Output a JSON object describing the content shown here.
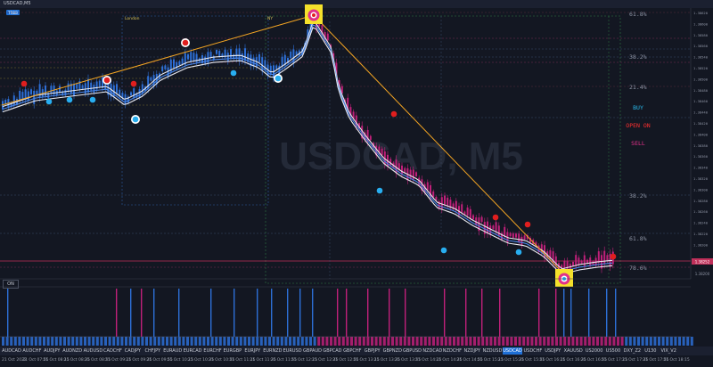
{
  "window": {
    "title": "USDCAD,M5",
    "badge": "TRBB"
  },
  "watermark": "USDCAD, M5",
  "session_labels": {
    "london": "London",
    "ny": "NY"
  },
  "fib_labels_top": [
    "61.8%",
    "38.2%",
    "21.4%"
  ],
  "fib_labels_bottom": [
    "38.2%",
    "61.8%",
    "78.6%"
  ],
  "signals": {
    "buy": "BUY",
    "open": "OPEN ON",
    "sell": "SELL"
  },
  "price_ticks": [
    "1.38620",
    "1.38600",
    "1.38580",
    "1.38560",
    "1.38540",
    "1.38520",
    "1.38500",
    "1.38480",
    "1.38460",
    "1.38440",
    "1.38420",
    "1.38400",
    "1.38380",
    "1.38360",
    "1.38340",
    "1.38320",
    "1.38300",
    "1.38280",
    "1.38260",
    "1.38240",
    "1.38220",
    "1.38200"
  ],
  "current_price": "1.38252",
  "bottom_price": "1.38200",
  "indicator_toggle": "ON",
  "tabs": [
    "AUDCAD",
    "AUDCHF",
    "AUDJPY",
    "AUDNZD",
    "AUDUSD",
    "CADCHF",
    "CADJPY",
    "CHFJPY",
    "EURAUD",
    "EURCAD",
    "EURCHF",
    "EURGBP",
    "EURJPY",
    "EURNZD",
    "EURUSD",
    "GBPAUD",
    "GBPCAD",
    "GBPCHF",
    "GBPJPY",
    "GBPNZD",
    "GBPUSD",
    "NZDCAD",
    "NZDCHF",
    "NZDJPY",
    "NZDUSD",
    "USDCAD",
    "USDCHF",
    "USDJPY",
    "XAUUSD",
    "US2000",
    "US500",
    "DXY_Z2",
    "U130",
    "VIX_V2"
  ],
  "active_tab": "USDCAD",
  "time_labels": [
    "21 Oct 2022",
    "21 Oct 07:55",
    "21 Oct 08:15",
    "21 Oct 08:35",
    "21 Oct 08:55",
    "21 Oct 09:15",
    "21 Oct 09:35",
    "21 Oct 09:55",
    "21 Oct 10:15",
    "21 Oct 10:35",
    "21 Oct 10:55",
    "21 Oct 11:15",
    "21 Oct 11:35",
    "21 Oct 11:55",
    "21 Oct 12:15",
    "21 Oct 12:35",
    "21 Oct 12:55",
    "21 Oct 13:15",
    "21 Oct 13:35",
    "21 Oct 13:55",
    "21 Oct 14:15",
    "21 Oct 14:35",
    "21 Oct 14:55",
    "21 Oct 15:15",
    "21 Oct 15:35",
    "21 Oct 15:55",
    "21 Oct 16:15",
    "21 Oct 16:35",
    "21 Oct 16:55",
    "21 Oct 17:15",
    "21 Oct 17:35",
    "21 Oct 17:55",
    "21 Oct 18:15"
  ],
  "colors": {
    "bull": "#2d6fd6",
    "bear": "#c0207a",
    "trendline": "#f5a623",
    "buy": "#28b4e6",
    "sell": "#e0308a",
    "open": "#ff3030",
    "dot_red": "#e01e1e",
    "dot_blue": "#28aef0",
    "highlight": "#f5e12b"
  }
}
